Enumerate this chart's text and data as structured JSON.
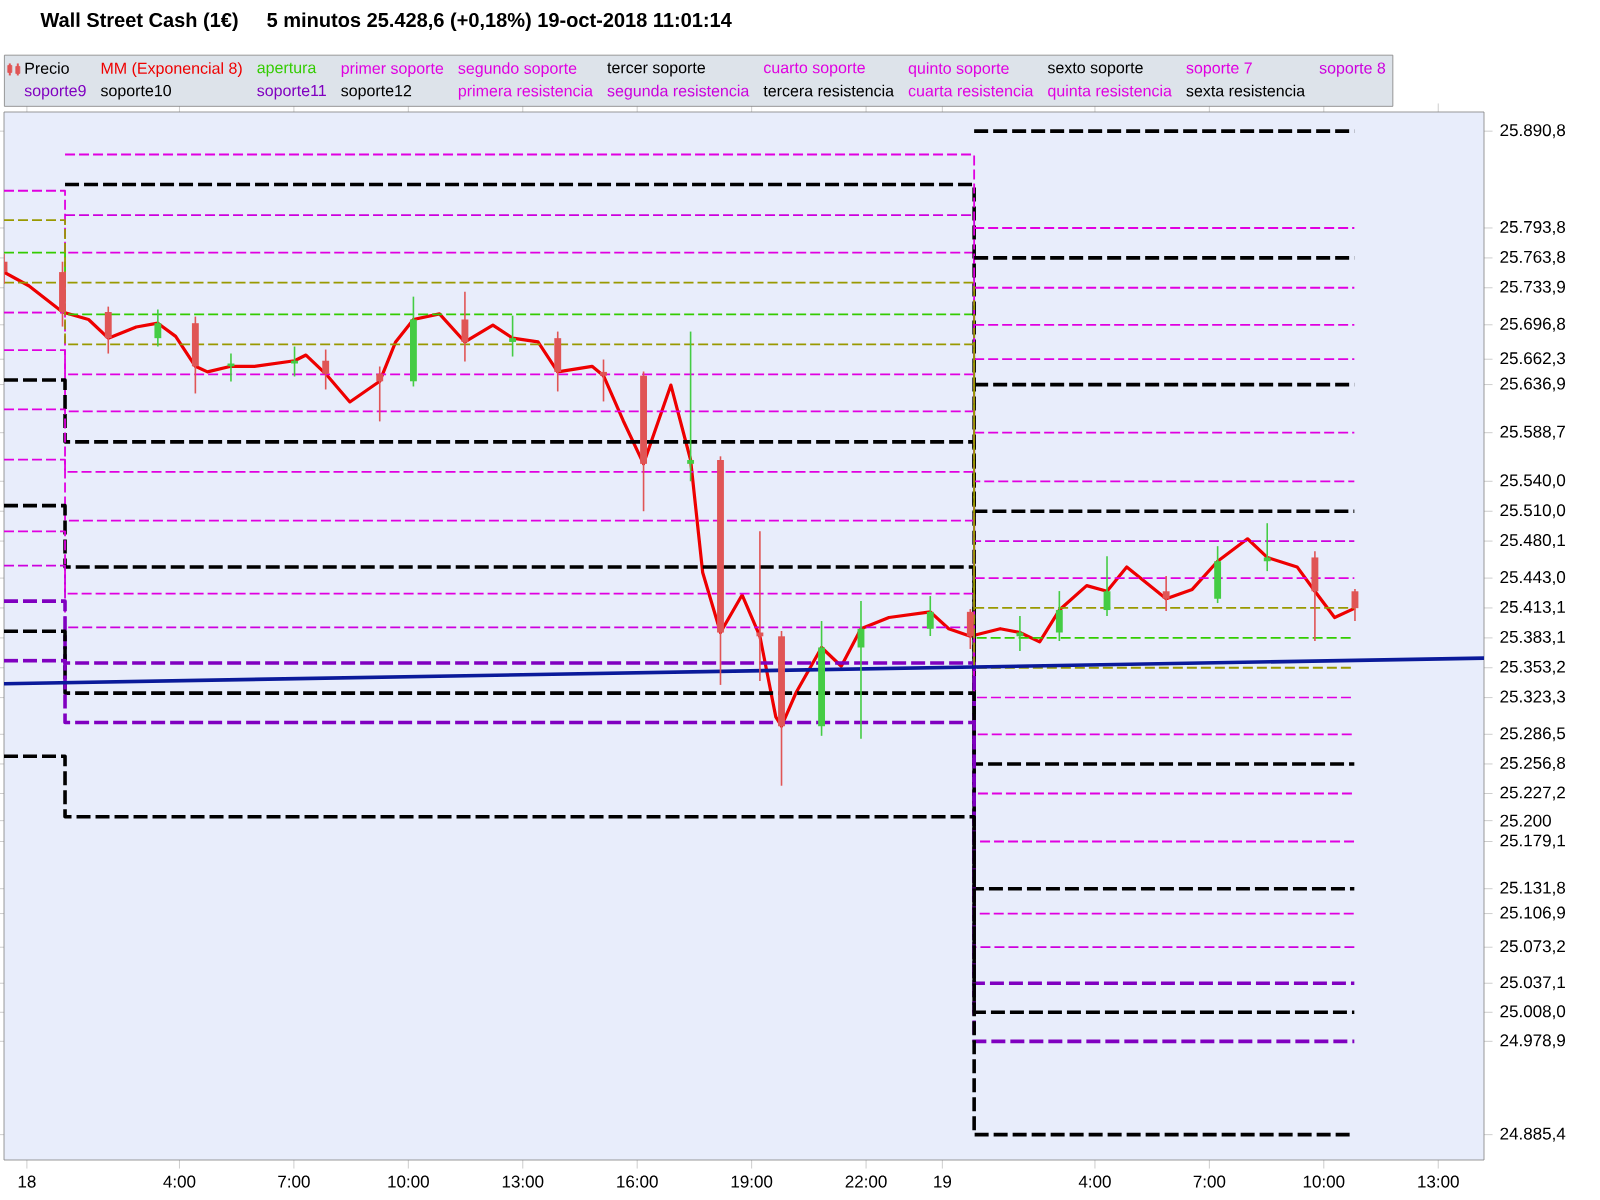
{
  "chart_data": {
    "type": "candlestick",
    "title": "Wall Street Cash (1€)",
    "subtitle": "5 minutos   25.428,6 (+0,18%)   19-oct-2018 11:01:14",
    "xlim": [
      "2018-10-17T23:24",
      "2018-10-19T14:12"
    ],
    "ylim": [
      24860,
      25910
    ],
    "xticks": [
      {
        "value": "2018-10-18T00:00",
        "label": "18"
      },
      {
        "value": "2018-10-18T04:00",
        "label": "4:00"
      },
      {
        "value": "2018-10-18T07:00",
        "label": "7:00"
      },
      {
        "value": "2018-10-18T10:00",
        "label": "10:00"
      },
      {
        "value": "2018-10-18T13:00",
        "label": "13:00"
      },
      {
        "value": "2018-10-18T16:00",
        "label": "16:00"
      },
      {
        "value": "2018-10-18T19:00",
        "label": "19:00"
      },
      {
        "value": "2018-10-18T22:00",
        "label": "22:00"
      },
      {
        "value": "2018-10-19T00:00",
        "label": "19"
      },
      {
        "value": "2018-10-19T04:00",
        "label": "4:00"
      },
      {
        "value": "2018-10-19T07:00",
        "label": "7:00"
      },
      {
        "value": "2018-10-19T10:00",
        "label": "10:00"
      },
      {
        "value": "2018-10-19T13:00",
        "label": "13:00"
      }
    ],
    "yticks": [
      {
        "value": 24885.4,
        "label": "24.885,4"
      },
      {
        "value": 24978.9,
        "label": "24.978,9"
      },
      {
        "value": 25008.0,
        "label": "25.008,0"
      },
      {
        "value": 25037.1,
        "label": "25.037,1"
      },
      {
        "value": 25073.2,
        "label": "25.073,2"
      },
      {
        "value": 25106.9,
        "label": "25.106,9"
      },
      {
        "value": 25131.8,
        "label": "25.131,8"
      },
      {
        "value": 25179.1,
        "label": "25.179,1"
      },
      {
        "value": 25200,
        "label": "25.200"
      },
      {
        "value": 25227.2,
        "label": "25.227,2"
      },
      {
        "value": 25256.8,
        "label": "25.256,8"
      },
      {
        "value": 25286.5,
        "label": "25.286,5"
      },
      {
        "value": 25323.3,
        "label": "25.323,3"
      },
      {
        "value": 25353.2,
        "label": "25.353,2"
      },
      {
        "value": 25383.1,
        "label": "25.383,1"
      },
      {
        "value": 25413.1,
        "label": "25.413,1"
      },
      {
        "value": 25443.0,
        "label": "25.443,0"
      },
      {
        "value": 25480.1,
        "label": "25.480,1"
      },
      {
        "value": 25510.0,
        "label": "25.510,0"
      },
      {
        "value": 25540.0,
        "label": "25.540,0"
      },
      {
        "value": 25588.7,
        "label": "25.588,7"
      },
      {
        "value": 25636.9,
        "label": "25.636,9"
      },
      {
        "value": 25662.3,
        "label": "25.662,3"
      },
      {
        "value": 25696.8,
        "label": "25.696,8"
      },
      {
        "value": 25733.9,
        "label": "25.733,9"
      },
      {
        "value": 25763.8,
        "label": "25.763,8"
      },
      {
        "value": 25793.8,
        "label": "25.793,8"
      },
      {
        "value": 25890.8,
        "label": "25.890,8"
      }
    ],
    "legend": "top",
    "series": [
      {
        "name": "Precio",
        "color": "#000000",
        "x": [
          "2018-10-17T23:24",
          "2018-10-18T00:56",
          "2018-10-18T02:08",
          "2018-10-18T03:26",
          "2018-10-18T04:25",
          "2018-10-18T05:21",
          "2018-10-18T07:01",
          "2018-10-18T07:50",
          "2018-10-18T09:15",
          "2018-10-18T10:08",
          "2018-10-18T11:29",
          "2018-10-18T12:44",
          "2018-10-18T13:55",
          "2018-10-18T15:07",
          "2018-10-18T16:10",
          "2018-10-18T17:24",
          "2018-10-18T18:11",
          "2018-10-18T19:13",
          "2018-10-18T19:47",
          "2018-10-18T20:50",
          "2018-10-18T21:52",
          "2018-10-18T23:41",
          "2018-10-19T00:44",
          "2018-10-19T02:02",
          "2018-10-19T03:04",
          "2018-10-19T04:19",
          "2018-10-19T05:52",
          "2018-10-19T07:13",
          "2018-10-19T08:31",
          "2018-10-19T09:46",
          "2018-10-19T10:49"
        ],
        "ohlc": [
          [
            25760,
            25768,
            25738,
            25749.6
          ],
          [
            25749.6,
            25760,
            25695,
            25709.6
          ],
          [
            25709.6,
            25715,
            25668,
            25683.4
          ],
          [
            25683.4,
            25712,
            25675,
            25698.4
          ],
          [
            25698.4,
            25705,
            25628,
            25655.2
          ],
          [
            25655.2,
            25668,
            25640,
            25658
          ],
          [
            25658,
            25675,
            25645,
            25660.8
          ],
          [
            25660.8,
            25672,
            25632,
            25647.7
          ],
          [
            25647.7,
            25655,
            25600,
            25640.2
          ],
          [
            25640.2,
            25725,
            25635,
            25702.1
          ],
          [
            25702.1,
            25730,
            25660,
            25679.6
          ],
          [
            25679.6,
            25706,
            25665,
            25683.4
          ],
          [
            25683.4,
            25690,
            25630,
            25649.6
          ],
          [
            25649.6,
            25662,
            25620,
            25645.8
          ],
          [
            25645.8,
            25650,
            25510,
            25557.5
          ],
          [
            25557.5,
            25690,
            25540,
            25561.3
          ],
          [
            25561.3,
            25565,
            25336,
            25388.5
          ],
          [
            25388.5,
            25490,
            25340,
            25384.7
          ],
          [
            25384.7,
            25390,
            25235,
            25294.6
          ],
          [
            25294.6,
            25400,
            25285,
            25373.5
          ],
          [
            25373.5,
            25420,
            25282,
            25392.3
          ],
          [
            25392.3,
            25425,
            25385,
            25409.2
          ],
          [
            25409.2,
            25412,
            25372,
            25384.7
          ],
          [
            25384.7,
            25405,
            25370,
            25388.5
          ],
          [
            25388.5,
            25430,
            25380,
            25411.0
          ],
          [
            25411.0,
            25465,
            25405,
            25429.8
          ],
          [
            25429.8,
            25445,
            25410,
            25422.3
          ],
          [
            25422.3,
            25475,
            25418,
            25459.9
          ],
          [
            25459.9,
            25498,
            25450,
            25463.7
          ],
          [
            25463.7,
            25470,
            25380,
            25429.8
          ],
          [
            25429.8,
            25432,
            25400,
            25412.9
          ]
        ],
        "colors": [
          "#e05555",
          "#e05555",
          "#e05555",
          "#44cc44",
          "#e05555",
          "#44cc44",
          "#44cc44",
          "#e05555",
          "#e05555",
          "#44cc44",
          "#e05555",
          "#44cc44",
          "#e05555",
          "#e05555",
          "#e05555",
          "#44cc44",
          "#e05555",
          "#e05555",
          "#e05555",
          "#44cc44",
          "#44cc44",
          "#44cc44",
          "#e05555",
          "#44cc44",
          "#44cc44",
          "#44cc44",
          "#e05555",
          "#44cc44",
          "#44cc44",
          "#e05555",
          "#e05555"
        ]
      },
      {
        "name": "MM (Exponencial 8)",
        "type": "line",
        "color": "#ee0000",
        "line_style": "solid",
        "x": [
          "2018-10-17T23:24",
          "2018-10-18T00:03",
          "2018-10-18T00:56",
          "2018-10-18T01:37",
          "2018-10-18T02:08",
          "2018-10-18T02:52",
          "2018-10-18T03:26",
          "2018-10-18T03:54",
          "2018-10-18T04:25",
          "2018-10-18T04:44",
          "2018-10-18T05:21",
          "2018-10-18T05:58",
          "2018-10-18T07:01",
          "2018-10-18T07:19",
          "2018-10-18T07:50",
          "2018-10-18T08:28",
          "2018-10-18T09:15",
          "2018-10-18T09:40",
          "2018-10-18T10:08",
          "2018-10-18T10:49",
          "2018-10-18T11:29",
          "2018-10-18T12:13",
          "2018-10-18T12:44",
          "2018-10-18T13:24",
          "2018-10-18T13:55",
          "2018-10-18T14:49",
          "2018-10-18T15:07",
          "2018-10-18T15:38",
          "2018-10-18T16:10",
          "2018-10-18T16:53",
          "2018-10-18T17:24",
          "2018-10-18T17:43",
          "2018-10-18T18:11",
          "2018-10-18T18:45",
          "2018-10-18T19:13",
          "2018-10-18T19:38",
          "2018-10-18T19:47",
          "2018-10-18T20:10",
          "2018-10-18T20:50",
          "2018-10-18T21:21",
          "2018-10-18T21:52",
          "2018-10-18T22:36",
          "2018-10-18T23:41",
          "2018-10-19T00:10",
          "2018-10-19T00:44",
          "2018-10-19T01:31",
          "2018-10-19T02:02",
          "2018-10-19T02:33",
          "2018-10-19T03:04",
          "2018-10-19T03:47",
          "2018-10-19T04:19",
          "2018-10-19T04:50",
          "2018-10-19T05:52",
          "2018-10-19T06:33",
          "2018-10-19T07:13",
          "2018-10-19T08:00",
          "2018-10-19T08:31",
          "2018-10-19T09:18",
          "2018-10-19T09:46",
          "2018-10-19T10:17",
          "2018-10-19T10:49"
        ],
        "values": [
          25749.6,
          25735.9,
          25709.6,
          25702.1,
          25683.4,
          25694.6,
          25698.4,
          25685.2,
          25655.2,
          25649.6,
          25655.2,
          25655.2,
          25660.8,
          25666.5,
          25647.7,
          25619.5,
          25640.2,
          25679.6,
          25702.1,
          25707.8,
          25679.6,
          25696.5,
          25683.4,
          25679.6,
          25649.6,
          25655.2,
          25645.8,
          25600.7,
          25557.5,
          25636.4,
          25561.3,
          25448.6,
          25388.5,
          25426.1,
          25384.7,
          25304.0,
          25294.6,
          25328.4,
          25373.5,
          25354.7,
          25392.3,
          25403.5,
          25409.2,
          25392.3,
          25384.7,
          25392.3,
          25388.5,
          25379.1,
          25411.0,
          25435.5,
          25429.8,
          25454.2,
          25422.3,
          25431.7,
          25459.9,
          25482.4,
          25463.7,
          25454.2,
          25429.8,
          25403.5,
          25412.9
        ]
      },
      {
        "name": "apertura",
        "type": "step",
        "color": "#33cc00",
        "line_style": "dashed",
        "x": [
          "2018-10-17T23:24",
          "2018-10-18T01:00",
          "2018-10-19T00:50",
          "2018-10-19T10:48"
        ],
        "values": [
          25769.2,
          25707.2,
          25383.1,
          25383.1
        ]
      },
      {
        "name": "primer soporte",
        "type": "step",
        "color": "#e000e0",
        "line_style": "dashed",
        "x": [
          "2018-10-17T23:24",
          "2018-10-18T01:00",
          "2018-10-19T00:50",
          "2018-10-19T10:48"
        ],
        "values": [
          25709.1,
          25647.1,
          25323.3,
          25323.3
        ]
      },
      {
        "name": "segundo soporte",
        "type": "step",
        "color": "#e000e0",
        "line_style": "dashed",
        "x": [
          "2018-10-17T23:24",
          "2018-10-18T01:00",
          "2018-10-19T00:50",
          "2018-10-19T10:48"
        ],
        "values": [
          25671.5,
          25610.1,
          25286.5,
          25286.5
        ]
      },
      {
        "name": "tercer soporte",
        "type": "step",
        "color": "#000000",
        "line_style": "dashed",
        "x": [
          "2018-10-17T23:24",
          "2018-10-18T01:00",
          "2018-10-19T00:50",
          "2018-10-19T10:48"
        ],
        "values": [
          25641.5,
          25579.5,
          25256.8,
          25256.8
        ]
      },
      {
        "name": "cuarto soporte",
        "type": "step",
        "color": "#e000e0",
        "line_style": "dashed",
        "x": [
          "2018-10-17T23:24",
          "2018-10-18T01:00",
          "2018-10-19T00:50",
          "2018-10-19T10:48"
        ],
        "values": [
          25612.0,
          25549.4,
          25227.2,
          25227.2
        ]
      },
      {
        "name": "quinto soporte",
        "type": "step",
        "color": "#e000e0",
        "line_style": "dashed",
        "x": [
          "2018-10-17T23:24",
          "2018-10-18T01:00",
          "2018-10-19T00:50",
          "2018-10-19T10:48"
        ],
        "values": [
          25561.8,
          25500.6,
          25179.1,
          25179.1
        ]
      },
      {
        "name": "sexto soporte",
        "type": "step",
        "color": "#000000",
        "line_style": "dashed",
        "x": [
          "2018-10-17T23:24",
          "2018-10-18T01:00",
          "2018-10-19T00:50",
          "2018-10-19T10:48"
        ],
        "values": [
          25515.6,
          25454.2,
          25131.8,
          25131.8
        ]
      },
      {
        "name": "soporte 7",
        "type": "step",
        "color": "#e000e0",
        "line_style": "dashed",
        "x": [
          "2018-10-17T23:24",
          "2018-10-18T01:00",
          "2018-10-19T00:50",
          "2018-10-19T10:48"
        ],
        "values": [
          25489.9,
          25427.4,
          25106.9,
          25106.9
        ]
      },
      {
        "name": "soporte 8",
        "type": "step",
        "color": "#cc00dd",
        "line_style": "dashed",
        "x": [
          "2018-10-17T23:24",
          "2018-10-18T01:00",
          "2018-10-19T00:50",
          "2018-10-19T10:48"
        ],
        "values": [
          25455.5,
          25393.6,
          25073.2,
          25073.2
        ]
      },
      {
        "name": "soporte9",
        "type": "step",
        "color": "#8000c0",
        "line_style": "dashed",
        "x": [
          "2018-10-17T23:24",
          "2018-10-18T01:00",
          "2018-10-19T00:50",
          "2018-10-19T10:48"
        ],
        "values": [
          25419.9,
          25357.9,
          25037.1,
          25037.1
        ]
      },
      {
        "name": "soporte10",
        "type": "step",
        "color": "#000000",
        "line_style": "dashed",
        "x": [
          "2018-10-17T23:24",
          "2018-10-18T01:00",
          "2018-10-19T00:50",
          "2018-10-19T10:48"
        ],
        "values": [
          25389.8,
          25327.8,
          25008.0,
          25008.0
        ]
      },
      {
        "name": "soporte11",
        "type": "step",
        "color": "#8000c0",
        "line_style": "dashed",
        "x": [
          "2018-10-17T23:24",
          "2018-10-18T01:00",
          "2018-10-19T00:50",
          "2018-10-19T10:48"
        ],
        "values": [
          25360.3,
          25298.3,
          24978.9,
          24978.9
        ]
      },
      {
        "name": "soporte12",
        "type": "step",
        "color": "#000000",
        "line_style": "dashed",
        "x": [
          "2018-10-17T23:24",
          "2018-10-18T01:00",
          "2018-10-19T00:50",
          "2018-10-19T10:48"
        ],
        "values": [
          25264.5,
          25203.9,
          24885.4,
          24885.4
        ]
      },
      {
        "name": "primera resistencia",
        "type": "step",
        "color": "#e000e0",
        "line_style": "dashed",
        "x": [
          "2018-10-17T23:24",
          "2018-10-18T01:00",
          "2018-10-19T00:50",
          "2018-10-19T10:48"
        ],
        "values": [
          25831.1,
          25769.2,
          25443.0,
          25443.0
        ]
      },
      {
        "name": "segunda resistencia",
        "type": "step",
        "color": "#cc00dd",
        "line_style": "dashed",
        "x": [
          "2018-10-18T01:00",
          "2018-10-19T00:50",
          "2018-10-19T10:48"
        ],
        "values": [
          25806.7,
          25480.1,
          25480.1
        ]
      },
      {
        "name": "tercera resistencia",
        "type": "step",
        "color": "#000000",
        "line_style": "dashed",
        "x": [
          "2018-10-18T01:00",
          "2018-10-19T00:50",
          "2018-10-19T10:48"
        ],
        "values": [
          25837.3,
          25510.0,
          25510.0
        ]
      },
      {
        "name": "cuarta resistencia",
        "type": "step",
        "color": "#e000e0",
        "line_style": "dashed",
        "x": [
          "2018-10-18T01:00",
          "2018-10-19T00:50",
          "2018-10-19T10:48"
        ],
        "values": [
          25867.4,
          25540.0,
          25540.0
        ]
      },
      {
        "name": "quinta resistencia",
        "type": "step",
        "color": "#e000e0",
        "line_style": "dashed",
        "x": [
          "2018-10-19T00:50",
          "2018-10-19T10:48"
        ],
        "values": [
          25588.7,
          25588.7
        ]
      },
      {
        "name": "sexta resistencia",
        "type": "step",
        "color": "#000000",
        "line_style": "dashed",
        "x": [
          "2018-10-19T00:50",
          "2018-10-19T10:48"
        ],
        "values": [
          25636.9,
          25636.9
        ]
      },
      {
        "type": "step",
        "color": "#e000e0",
        "line_style": "dashed",
        "x": [
          "2018-10-19T00:50",
          "2018-10-19T10:48"
        ],
        "values": [
          25662.3,
          25662.3
        ]
      },
      {
        "type": "step",
        "color": "#e000e0",
        "line_style": "dashed",
        "x": [
          "2018-10-19T00:50",
          "2018-10-19T10:48"
        ],
        "values": [
          25696.8,
          25696.8
        ]
      },
      {
        "type": "step",
        "color": "#e000e0",
        "line_style": "dashed",
        "x": [
          "2018-10-19T00:50",
          "2018-10-19T10:48"
        ],
        "values": [
          25733.9,
          25733.9
        ]
      },
      {
        "type": "step",
        "color": "#000000",
        "line_style": "dashed",
        "x": [
          "2018-10-19T00:50",
          "2018-10-19T10:48"
        ],
        "values": [
          25763.8,
          25763.8
        ]
      },
      {
        "type": "step",
        "color": "#e000e0",
        "line_style": "dashed",
        "x": [
          "2018-10-19T00:50",
          "2018-10-19T10:48"
        ],
        "values": [
          25793.8,
          25793.8
        ]
      },
      {
        "type": "step",
        "color": "#000000",
        "line_style": "dashed",
        "x": [
          "2018-10-19T00:50",
          "2018-10-19T10:48"
        ],
        "values": [
          25890.8,
          25890.8
        ]
      },
      {
        "type": "step",
        "color": "#999900",
        "line_style": "dashed",
        "x": [
          "2018-10-17T23:24",
          "2018-10-18T01:00",
          "2018-10-19T00:50",
          "2018-10-19T10:48"
        ],
        "values": [
          25801.7,
          25739.1,
          25413.1,
          25413.1
        ]
      },
      {
        "type": "step",
        "color": "#999900",
        "line_style": "dashed",
        "x": [
          "2018-10-17T23:24",
          "2018-10-18T01:00",
          "2018-10-19T00:50",
          "2018-10-19T10:48"
        ],
        "values": [
          25739.1,
          25677.1,
          25353.2,
          25353.2
        ]
      },
      {
        "type": "line",
        "color": "#0a1a9a",
        "line_style": "solid",
        "x": [
          "2018-10-17T23:24",
          "2018-10-19T14:12"
        ],
        "values": [
          25337.2,
          25362.8
        ]
      }
    ]
  }
}
